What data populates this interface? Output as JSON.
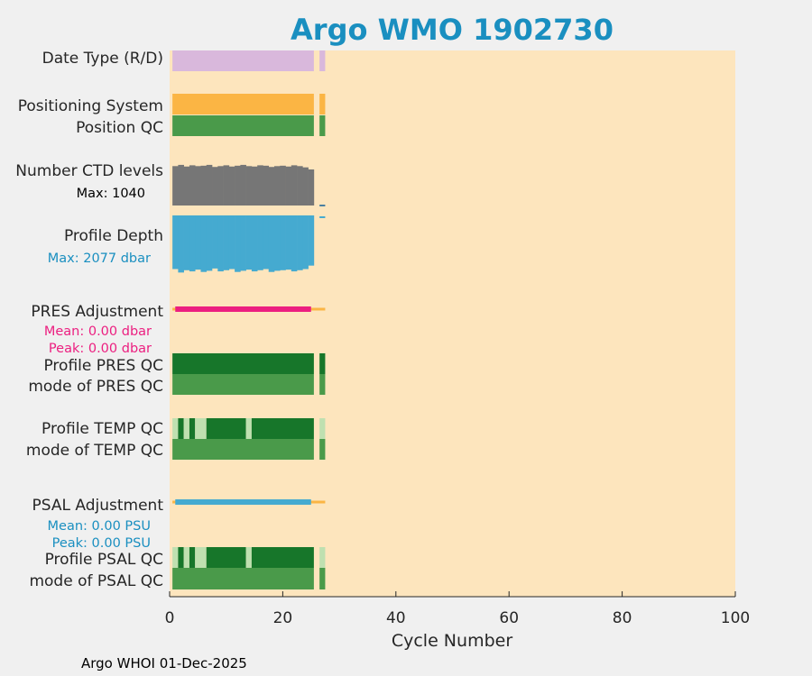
{
  "colors": {
    "background": "#f0f0f0",
    "plot_background": "#fde5bd",
    "title": "#1a8fc0",
    "date_type": "#d9b8dc",
    "positioning": "#fbb544",
    "qc_good": "#4a9a4a",
    "qc_dark": "#17762a",
    "qc_light": "#bfe0b0",
    "ctd_levels": "#767676",
    "depth": "#45aad0",
    "pres_adjust": "#ec1f80",
    "psal_adjust": "#45aad0",
    "adjust_stub": "#fbb544",
    "pres_text": "#ec1f80",
    "psal_text": "#1a8fc0",
    "depth_text": "#1a8fc0"
  },
  "title": "Argo WMO 1902730",
  "rows": {
    "date_type": "Date Type (R/D)",
    "positioning_system": "Positioning System",
    "position_qc": "Position QC",
    "ctd_levels": "Number CTD levels",
    "ctd_levels_max": "Max: 1040",
    "profile_depth": "Profile Depth",
    "profile_depth_max": "Max: 2077 dbar",
    "pres_adjustment": "PRES Adjustment",
    "pres_mean": "Mean: 0.00 dbar",
    "pres_peak": "Peak: 0.00 dbar",
    "profile_pres_qc": "Profile PRES QC",
    "mode_pres_qc": "mode of PRES QC",
    "profile_temp_qc": "Profile TEMP QC",
    "mode_temp_qc": "mode of TEMP QC",
    "psal_adjustment": "PSAL Adjustment",
    "psal_mean": "Mean: 0.00 PSU",
    "psal_peak": "Peak: 0.00 PSU",
    "profile_psal_qc": "Profile PSAL QC",
    "mode_psal_qc": "mode of PSAL QC"
  },
  "footer": "Argo WHOI 01-Dec-2025",
  "chart_data": {
    "type": "bar",
    "title": "Argo WMO 1902730",
    "xlabel": "Cycle Number",
    "xlim": [
      0,
      100
    ],
    "xticks": [
      0,
      20,
      40,
      60,
      80,
      100
    ],
    "grid": false,
    "max_ctd_levels": 1040,
    "max_profile_depth_dbar": 2077,
    "pres_adjustment": {
      "mean_dbar": 0.0,
      "peak_dbar": 0.0
    },
    "psal_adjustment": {
      "mean_psu": 0.0,
      "peak_psu": 0.0
    },
    "series": [
      {
        "row": "date_type",
        "segments": [
          [
            0.5,
            25.5,
            "date_type"
          ],
          [
            26.5,
            27.5,
            "date_type"
          ]
        ]
      },
      {
        "row": "positioning_system",
        "segments": [
          [
            0.5,
            25.5,
            "positioning"
          ],
          [
            26.5,
            27.5,
            "positioning"
          ]
        ]
      },
      {
        "row": "position_qc",
        "segments": [
          [
            0.5,
            25.5,
            "qc_good"
          ],
          [
            26.5,
            27.5,
            "qc_good"
          ]
        ]
      },
      {
        "row": "profile_pres_qc",
        "segments": [
          [
            0.5,
            25.5,
            "qc_dark"
          ],
          [
            26.5,
            27.5,
            "qc_dark"
          ]
        ]
      },
      {
        "row": "mode_pres_qc",
        "segments": [
          [
            0.5,
            25.5,
            "qc_good"
          ],
          [
            26.5,
            27.5,
            "qc_good"
          ]
        ]
      },
      {
        "row": "profile_temp_qc",
        "segments": [
          [
            0.5,
            1.5,
            "qc_light"
          ],
          [
            1.5,
            2.5,
            "qc_dark"
          ],
          [
            2.5,
            3.5,
            "qc_light"
          ],
          [
            3.5,
            4.5,
            "qc_dark"
          ],
          [
            4.5,
            6.5,
            "qc_light"
          ],
          [
            6.5,
            13.5,
            "qc_dark"
          ],
          [
            13.5,
            14.5,
            "qc_light"
          ],
          [
            14.5,
            25.5,
            "qc_dark"
          ],
          [
            26.5,
            27.5,
            "qc_light"
          ]
        ]
      },
      {
        "row": "mode_temp_qc",
        "segments": [
          [
            0.5,
            25.5,
            "qc_good"
          ],
          [
            26.5,
            27.5,
            "qc_good"
          ]
        ]
      },
      {
        "row": "profile_psal_qc",
        "segments": [
          [
            0.5,
            1.5,
            "qc_light"
          ],
          [
            1.5,
            2.5,
            "qc_dark"
          ],
          [
            2.5,
            3.5,
            "qc_light"
          ],
          [
            3.5,
            4.5,
            "qc_dark"
          ],
          [
            4.5,
            6.5,
            "qc_light"
          ],
          [
            6.5,
            13.5,
            "qc_dark"
          ],
          [
            13.5,
            14.5,
            "qc_light"
          ],
          [
            14.5,
            25.5,
            "qc_dark"
          ],
          [
            26.5,
            27.5,
            "qc_light"
          ]
        ]
      },
      {
        "row": "mode_psal_qc",
        "segments": [
          [
            0.5,
            25.5,
            "qc_good"
          ],
          [
            26.5,
            27.5,
            "qc_good"
          ]
        ]
      },
      {
        "row": "pres_adjustment",
        "line": [
          1,
          25
        ],
        "stub": [
          0.5,
          27.5
        ]
      },
      {
        "row": "psal_adjustment",
        "line": [
          1,
          25
        ],
        "stub": [
          0.5,
          27.5
        ]
      },
      {
        "row": "ctd_levels",
        "cycles": [
          1,
          2,
          3,
          4,
          5,
          6,
          7,
          8,
          9,
          10,
          11,
          12,
          13,
          14,
          15,
          16,
          17,
          18,
          19,
          20,
          21,
          22,
          23,
          24,
          25
        ],
        "values_fraction": [
          0.95,
          0.98,
          0.94,
          0.97,
          0.95,
          0.96,
          0.98,
          0.93,
          0.95,
          0.97,
          0.94,
          0.96,
          0.98,
          0.95,
          0.94,
          0.97,
          0.96,
          0.93,
          0.95,
          0.96,
          0.94,
          0.97,
          0.95,
          0.92,
          0.87
        ],
        "tail": [
          [
            26.5,
            27.5,
            "depth"
          ]
        ]
      },
      {
        "row": "profile_depth",
        "cycles": [
          1,
          2,
          3,
          4,
          5,
          6,
          7,
          8,
          9,
          10,
          11,
          12,
          13,
          14,
          15,
          16,
          17,
          18,
          19,
          20,
          21,
          22,
          23,
          24,
          25
        ],
        "values_fraction": [
          0.93,
          0.99,
          0.95,
          0.97,
          0.94,
          0.98,
          0.96,
          0.92,
          0.97,
          0.95,
          0.93,
          0.98,
          0.96,
          0.94,
          0.97,
          0.95,
          0.93,
          0.98,
          0.96,
          0.95,
          0.94,
          0.97,
          0.95,
          0.93,
          0.87
        ],
        "tail": [
          [
            26.5,
            27.5,
            "depth"
          ]
        ]
      }
    ]
  }
}
